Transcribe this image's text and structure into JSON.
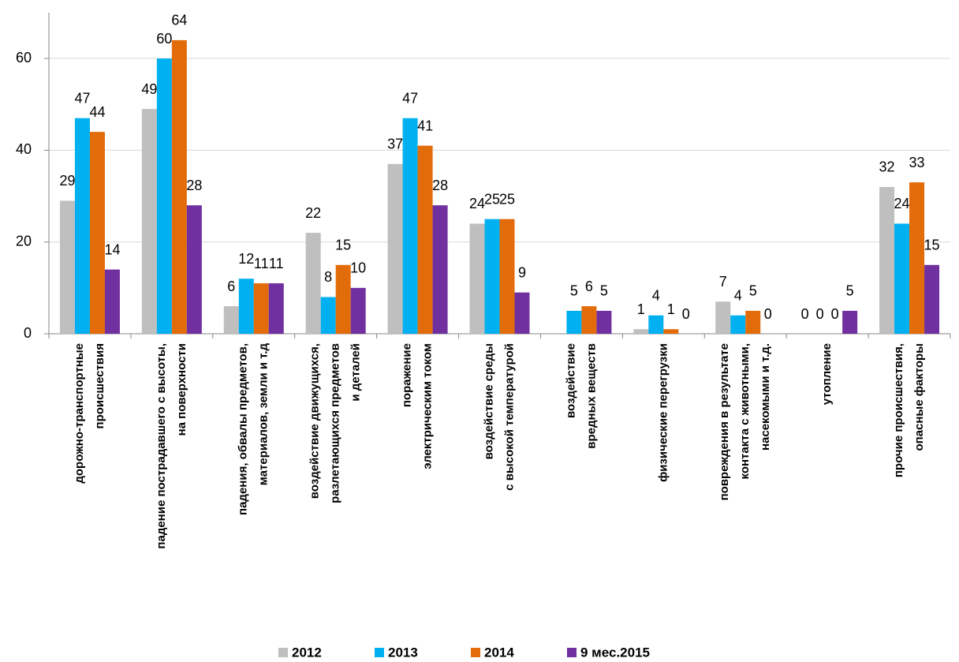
{
  "chart_data": {
    "type": "bar",
    "categories": [
      [
        "дорожно-транспортные",
        "происшествия"
      ],
      [
        "падение пострадавшего с высоты,",
        "на поверхности"
      ],
      [
        "падения, обвалы предметов,",
        "материалов, земли и т.д"
      ],
      [
        "воздействие движущихся,",
        "разлетающихся предметов",
        "и деталей"
      ],
      [
        "поражение",
        "электрическим током"
      ],
      [
        "воздействие среды",
        "с высокой  температурой"
      ],
      [
        "воздействие",
        "вредных веществ"
      ],
      [
        "физические перегрузки"
      ],
      [
        "повреждения в результате",
        "контакта с животными,",
        "насекомыми и т.д."
      ],
      [
        "утопление"
      ],
      [
        "прочие происшествия,",
        "опасные факторы"
      ]
    ],
    "series": [
      {
        "name": "2012",
        "color": "#bfbfbf",
        "values": [
          29,
          49,
          6,
          22,
          37,
          24,
          null,
          1,
          7,
          0,
          32
        ]
      },
      {
        "name": "2013",
        "color": "#00b0f0",
        "values": [
          47,
          60,
          12,
          8,
          47,
          25,
          5,
          4,
          4,
          0,
          24
        ]
      },
      {
        "name": "2014",
        "color": "#e36c0a",
        "values": [
          44,
          64,
          11,
          15,
          41,
          25,
          6,
          1,
          5,
          0,
          33
        ]
      },
      {
        "name": "9 мес.2015",
        "color": "#7030a0",
        "values": [
          14,
          28,
          11,
          10,
          28,
          9,
          5,
          0,
          0,
          5,
          15
        ]
      }
    ],
    "ylim": [
      0,
      70
    ],
    "yticks": [
      0,
      20,
      40,
      60
    ],
    "grid": true
  }
}
